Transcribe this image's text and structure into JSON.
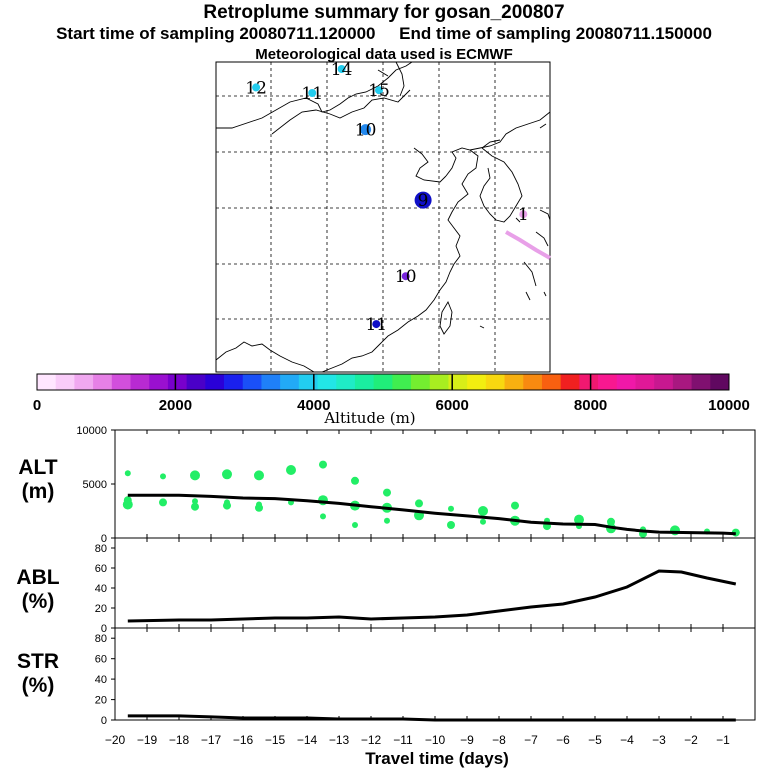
{
  "header": {
    "title": "Retroplume summary for gosan_200807",
    "start_time": "Start time of sampling 20080711.120000",
    "end_time": "End time of sampling 20080711.150000",
    "met": "Meteorological data used is ECMWF"
  },
  "colors": {
    "background": "#ffffff",
    "ink": "#000000",
    "dots_bottom": "#22ee66"
  },
  "chart_data": [
    {
      "type": "scatter",
      "name": "retroplume-map",
      "title": "Retroplume centroids by day",
      "points": [
        {
          "label": "1",
          "lon": 129.0,
          "lat": 32.2,
          "color": "#e8a0e8",
          "size": "small"
        },
        {
          "label": "9",
          "lon": 121.5,
          "lat": 33.2,
          "color": "#1010c8",
          "size": "large"
        },
        {
          "label": "10",
          "lon": 117.2,
          "lat": 38.2,
          "color": "#2288ee",
          "size": "medium"
        },
        {
          "label": "11",
          "lon": 113.2,
          "lat": 40.8,
          "color": "#22ccee",
          "size": "small"
        },
        {
          "label": "12",
          "lon": 109.0,
          "lat": 41.2,
          "color": "#22ccee",
          "size": "small"
        },
        {
          "label": "14",
          "lon": 115.4,
          "lat": 42.5,
          "color": "#22ccee",
          "size": "small"
        },
        {
          "label": "15",
          "lon": 118.2,
          "lat": 41.0,
          "color": "#22ccee",
          "size": "small"
        },
        {
          "label": "10",
          "lon": 120.2,
          "lat": 27.8,
          "color": "#7722dd",
          "size": "small"
        },
        {
          "label": "11",
          "lon": 118.0,
          "lat": 24.4,
          "color": "#1010c8",
          "size": "small"
        }
      ]
    },
    {
      "type": "colorbar",
      "name": "altitude-colorbar",
      "xlabel": "Altitude (m)",
      "range": [
        0,
        10000
      ],
      "tick_labels": [
        "0",
        "2000",
        "4000",
        "6000",
        "8000",
        "10000"
      ],
      "colors": [
        "#ffe6ff",
        "#f9ccf9",
        "#f0a8f0",
        "#e680e6",
        "#d24fdc",
        "#b82ad2",
        "#9a10d0",
        "#7800cc",
        "#4a00c8",
        "#2a00d8",
        "#1a20ee",
        "#1a50f8",
        "#1f80f8",
        "#22aaf6",
        "#22cdf0",
        "#22e6e6",
        "#1fecc6",
        "#1aeea0",
        "#20ee7a",
        "#40ee50",
        "#74ee30",
        "#a8ee20",
        "#d8ee18",
        "#f2ee10",
        "#f8d810",
        "#f8b010",
        "#f88a10",
        "#f86010",
        "#f02020",
        "#f01870",
        "#f81890",
        "#f018a8",
        "#e01898",
        "#c81890",
        "#a81880",
        "#801070",
        "#600860"
      ]
    },
    {
      "type": "line",
      "name": "ALT",
      "ylabel_lines": [
        "ALT",
        "(m)"
      ],
      "ylim": [
        0,
        10000
      ],
      "yticks": [
        0,
        5000,
        10000
      ],
      "line": {
        "x": [
          -19.6,
          -18,
          -17,
          -16,
          -15,
          -14,
          -13,
          -12,
          -11,
          -10,
          -9,
          -8,
          -7,
          -6,
          -5,
          -4.5,
          -4,
          -3.5,
          -3,
          -2,
          -1,
          -0.6
        ],
        "y": [
          3950,
          3950,
          3850,
          3700,
          3650,
          3450,
          3200,
          2900,
          2600,
          2300,
          2050,
          1800,
          1450,
          1300,
          1250,
          1000,
          800,
          650,
          550,
          500,
          450,
          400
        ]
      },
      "dots": [
        {
          "x": -19.6,
          "y": 6000
        },
        {
          "x": -19.6,
          "y": 3500
        },
        {
          "x": -19.6,
          "y": 3100
        },
        {
          "x": -18.5,
          "y": 5700
        },
        {
          "x": -18.5,
          "y": 3300
        },
        {
          "x": -17.5,
          "y": 5800
        },
        {
          "x": -17.5,
          "y": 3400
        },
        {
          "x": -17.5,
          "y": 2900
        },
        {
          "x": -16.5,
          "y": 5900
        },
        {
          "x": -16.5,
          "y": 3300
        },
        {
          "x": -16.5,
          "y": 3000
        },
        {
          "x": -15.5,
          "y": 5800
        },
        {
          "x": -15.5,
          "y": 3100
        },
        {
          "x": -15.5,
          "y": 2800
        },
        {
          "x": -14.5,
          "y": 6300
        },
        {
          "x": -14.5,
          "y": 3300
        },
        {
          "x": -13.5,
          "y": 6800
        },
        {
          "x": -13.5,
          "y": 3500
        },
        {
          "x": -13.5,
          "y": 2000
        },
        {
          "x": -12.5,
          "y": 5300
        },
        {
          "x": -12.5,
          "y": 3000
        },
        {
          "x": -12.5,
          "y": 1200
        },
        {
          "x": -11.5,
          "y": 4200
        },
        {
          "x": -11.5,
          "y": 2800
        },
        {
          "x": -11.5,
          "y": 1600
        },
        {
          "x": -10.5,
          "y": 3200
        },
        {
          "x": -10.5,
          "y": 2100
        },
        {
          "x": -9.5,
          "y": 2700
        },
        {
          "x": -9.5,
          "y": 1200
        },
        {
          "x": -8.5,
          "y": 2500
        },
        {
          "x": -8.5,
          "y": 1500
        },
        {
          "x": -7.5,
          "y": 3000
        },
        {
          "x": -7.5,
          "y": 1600
        },
        {
          "x": -6.5,
          "y": 1600
        },
        {
          "x": -6.5,
          "y": 1100
        },
        {
          "x": -5.5,
          "y": 1700
        },
        {
          "x": -5.5,
          "y": 1100
        },
        {
          "x": -4.5,
          "y": 1500
        },
        {
          "x": -4.5,
          "y": 900
        },
        {
          "x": -3.5,
          "y": 800
        },
        {
          "x": -3.5,
          "y": 400
        },
        {
          "x": -2.5,
          "y": 700
        },
        {
          "x": -1.5,
          "y": 600
        },
        {
          "x": -0.6,
          "y": 500
        }
      ]
    },
    {
      "type": "line",
      "name": "ABL",
      "ylabel_lines": [
        "ABL",
        "(%)"
      ],
      "ylim": [
        0,
        90
      ],
      "yticks": [
        0,
        20,
        40,
        60,
        80
      ],
      "x": [
        -19.6,
        -18,
        -17,
        -16,
        -15,
        -14,
        -13,
        -12,
        -11,
        -10,
        -9,
        -8,
        -7,
        -6,
        -5,
        -4,
        -3,
        -2.3,
        -1.5,
        -0.6
      ],
      "y": [
        7,
        8,
        8,
        9,
        10,
        10,
        11,
        9,
        10,
        11,
        13,
        17,
        21,
        24,
        31,
        41,
        57,
        56,
        50,
        44
      ]
    },
    {
      "type": "line",
      "name": "STR",
      "ylabel_lines": [
        "STR",
        "(%)"
      ],
      "ylim": [
        0,
        90
      ],
      "yticks": [
        0,
        20,
        40,
        60,
        80
      ],
      "xlabel": "Travel time (days)",
      "xlim": [
        -20,
        0
      ],
      "xtick_labels": [
        "−20",
        "−19",
        "−18",
        "−17",
        "−16",
        "−15",
        "−14",
        "−13",
        "−12",
        "−11",
        "−10",
        "−9",
        "−8",
        "−7",
        "−6",
        "−5",
        "−4",
        "−3",
        "−2",
        "−1"
      ],
      "x": [
        -19.6,
        -18,
        -17,
        -16,
        -15,
        -14,
        -13,
        -12,
        -11,
        -10,
        -9,
        -8,
        -7,
        -6,
        -5,
        -4,
        -3,
        -2,
        -1,
        -0.6
      ],
      "y": [
        4,
        4,
        3,
        2,
        2,
        2,
        1,
        1,
        1,
        0,
        0,
        0,
        0,
        0,
        0,
        0,
        0,
        0,
        0,
        0
      ]
    }
  ]
}
